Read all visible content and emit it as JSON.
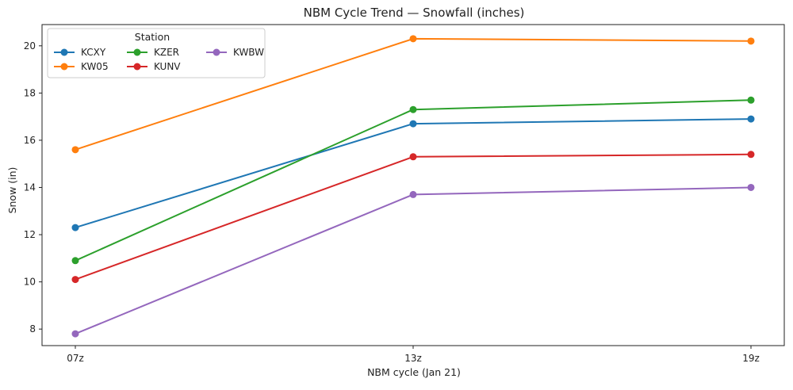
{
  "chart_data": {
    "type": "line",
    "title": "NBM Cycle Trend — Snowfall (inches)",
    "xlabel": "NBM cycle (Jan 21)",
    "ylabel": "Snow (in)",
    "categories": [
      "07z",
      "13z",
      "19z"
    ],
    "ylim": [
      7.3,
      20.9
    ],
    "yticks": [
      8,
      10,
      12,
      14,
      16,
      18,
      20
    ],
    "grid": false,
    "legend": {
      "title": "Station",
      "placement": "upper-left",
      "columns": 3
    },
    "series": [
      {
        "name": "KCXY",
        "color": "#1f77b4",
        "values": [
          12.3,
          16.7,
          16.9
        ]
      },
      {
        "name": "KW05",
        "color": "#ff7f0e",
        "values": [
          15.6,
          20.3,
          20.2
        ]
      },
      {
        "name": "KZER",
        "color": "#2ca02c",
        "values": [
          10.9,
          17.3,
          17.7
        ]
      },
      {
        "name": "KUNV",
        "color": "#d62728",
        "values": [
          10.1,
          15.3,
          15.4
        ]
      },
      {
        "name": "KWBW",
        "color": "#9467bd",
        "values": [
          7.8,
          13.7,
          14.0
        ]
      }
    ]
  }
}
